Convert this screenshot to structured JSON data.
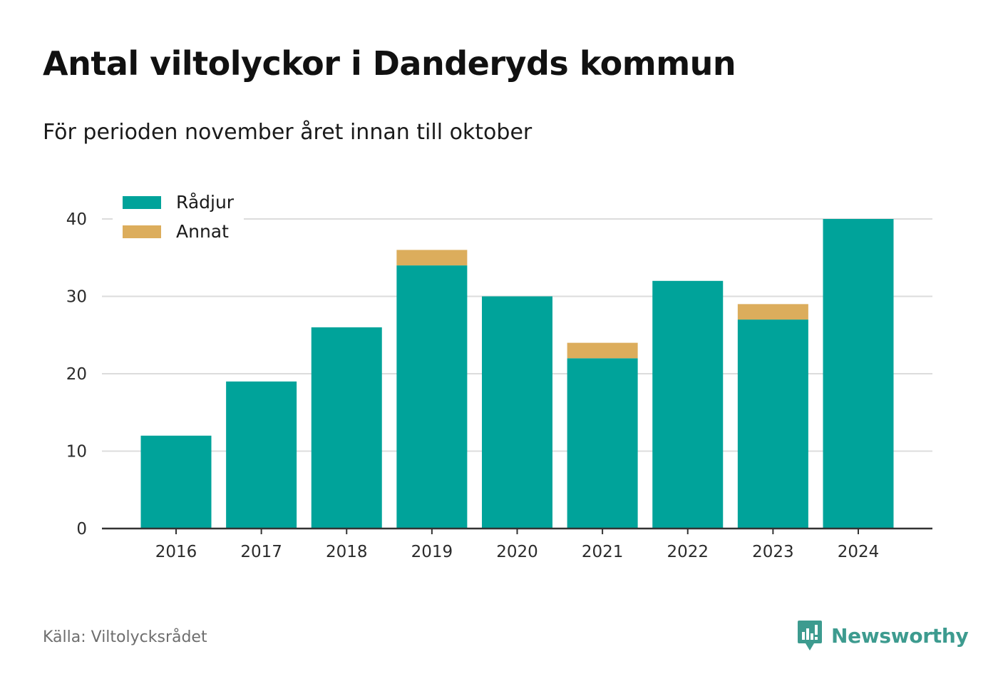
{
  "title": "Antal viltolyckor i Danderyds kommun",
  "subtitle": "För perioden november året innan till oktober",
  "source": "Källa: Viltolycksrådet",
  "brand": {
    "name": "Newsworthy",
    "icon": "newsworthy-logo-icon",
    "color": "#3d9b8f"
  },
  "chart_data": {
    "type": "bar",
    "stacked": true,
    "categories": [
      "2016",
      "2017",
      "2018",
      "2019",
      "2020",
      "2021",
      "2022",
      "2023",
      "2024"
    ],
    "series": [
      {
        "name": "Rådjur",
        "color": "#00a39a",
        "values": [
          12,
          19,
          26,
          34,
          30,
          22,
          32,
          27,
          40
        ]
      },
      {
        "name": "Annat",
        "color": "#dcad5c",
        "values": [
          0,
          0,
          0,
          2,
          0,
          2,
          0,
          2,
          0
        ]
      }
    ],
    "ylim": [
      0,
      40
    ],
    "yticks": [
      0,
      10,
      20,
      30,
      40
    ],
    "grid": true,
    "legend": "top-left"
  }
}
